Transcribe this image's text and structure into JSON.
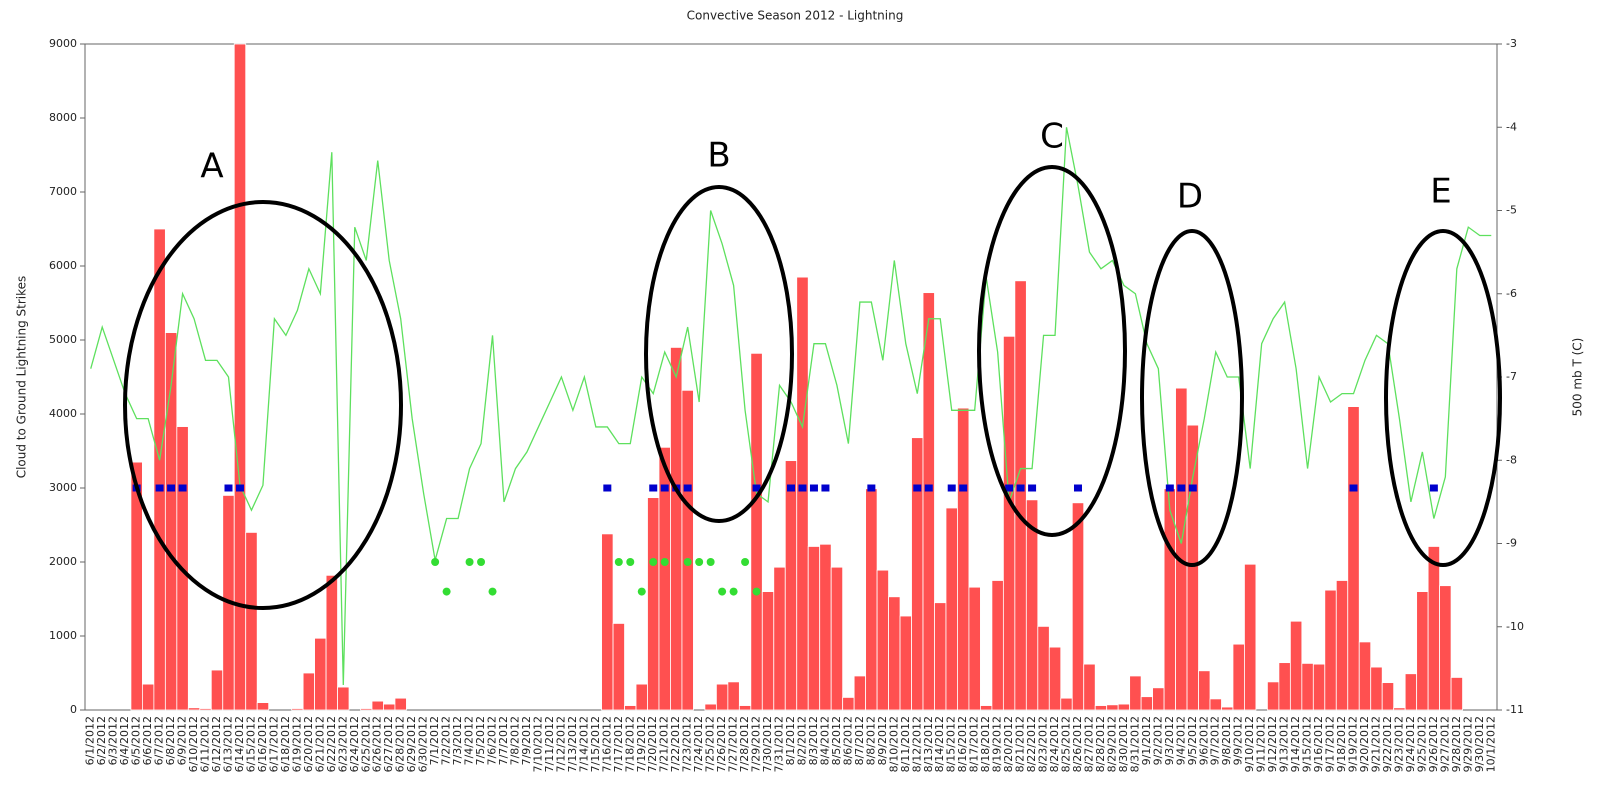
{
  "chart_data": {
    "type": "bar",
    "title": "Convective Season 2012 - Lightning",
    "y_label": "Cloud to Ground Lightning Strikes",
    "y2_label": "500 mb T (C)",
    "categories": [
      "6/1/2012",
      "6/2/2012",
      "6/3/2012",
      "6/4/2012",
      "6/5/2012",
      "6/6/2012",
      "6/7/2012",
      "6/8/2012",
      "6/9/2012",
      "6/10/2012",
      "6/11/2012",
      "6/12/2012",
      "6/13/2012",
      "6/14/2012",
      "6/15/2012",
      "6/16/2012",
      "6/17/2012",
      "6/18/2012",
      "6/19/2012",
      "6/20/2012",
      "6/21/2012",
      "6/22/2012",
      "6/23/2012",
      "6/24/2012",
      "6/25/2012",
      "6/26/2012",
      "6/27/2012",
      "6/28/2012",
      "6/29/2012",
      "6/30/2012",
      "7/1/2012",
      "7/2/2012",
      "7/3/2012",
      "7/4/2012",
      "7/5/2012",
      "7/6/2012",
      "7/7/2012",
      "7/8/2012",
      "7/9/2012",
      "7/10/2012",
      "7/11/2012",
      "7/12/2012",
      "7/13/2012",
      "7/14/2012",
      "7/15/2012",
      "7/16/2012",
      "7/17/2012",
      "7/18/2012",
      "7/19/2012",
      "7/20/2012",
      "7/21/2012",
      "7/22/2012",
      "7/23/2012",
      "7/24/2012",
      "7/25/2012",
      "7/26/2012",
      "7/27/2012",
      "7/28/2012",
      "7/29/2012",
      "7/30/2012",
      "7/31/2012",
      "8/1/2012",
      "8/2/2012",
      "8/3/2012",
      "8/4/2012",
      "8/5/2012",
      "8/6/2012",
      "8/7/2012",
      "8/8/2012",
      "8/9/2012",
      "8/10/2012",
      "8/11/2012",
      "8/12/2012",
      "8/13/2012",
      "8/14/2012",
      "8/15/2012",
      "8/16/2012",
      "8/17/2012",
      "8/18/2012",
      "8/19/2012",
      "8/20/2012",
      "8/21/2012",
      "8/22/2012",
      "8/23/2012",
      "8/24/2012",
      "8/25/2012",
      "8/26/2012",
      "8/27/2012",
      "8/28/2012",
      "8/29/2012",
      "8/30/2012",
      "8/31/2012",
      "9/1/2012",
      "9/2/2012",
      "9/3/2012",
      "9/4/2012",
      "9/5/2012",
      "9/6/2012",
      "9/7/2012",
      "9/8/2012",
      "9/9/2012",
      "9/10/2012",
      "9/11/2012",
      "9/12/2012",
      "9/13/2012",
      "9/14/2012",
      "9/15/2012",
      "9/16/2012",
      "9/17/2012",
      "9/18/2012",
      "9/19/2012",
      "9/20/2012",
      "9/21/2012",
      "9/22/2012",
      "9/23/2012",
      "9/24/2012",
      "9/25/2012",
      "9/26/2012",
      "9/27/2012",
      "9/28/2012",
      "9/29/2012",
      "9/30/2012",
      "10/1/2012"
    ],
    "series": [
      {
        "kind": "bar",
        "color": "#ff5050",
        "values": [
          0,
          0,
          0,
          0,
          3350,
          350,
          6500,
          5100,
          3830,
          30,
          20,
          540,
          2900,
          9000,
          2400,
          100,
          0,
          0,
          20,
          500,
          970,
          1820,
          310,
          0,
          20,
          120,
          80,
          160,
          0,
          0,
          0,
          0,
          0,
          0,
          0,
          0,
          0,
          0,
          0,
          0,
          0,
          0,
          0,
          0,
          0,
          2380,
          1170,
          60,
          350,
          2870,
          3550,
          4900,
          4320,
          0,
          80,
          350,
          380,
          60,
          4820,
          1600,
          1930,
          3370,
          5850,
          2210,
          2240,
          1930,
          170,
          460,
          2990,
          1890,
          1530,
          1270,
          3680,
          5640,
          1450,
          2730,
          4080,
          1660,
          60,
          1750,
          5050,
          5800,
          2840,
          1130,
          850,
          160,
          2800,
          620,
          60,
          70,
          80,
          460,
          180,
          300,
          2990,
          4350,
          3850,
          530,
          150,
          40,
          890,
          1970,
          0,
          380,
          640,
          1200,
          630,
          620,
          1620,
          1750,
          4100,
          920,
          580,
          370,
          30,
          490,
          1600,
          2210,
          1680,
          440,
          0,
          0,
          0
        ]
      },
      {
        "kind": "line",
        "axis": "y2",
        "color": "#5ee05e",
        "values": [
          -6.9,
          -6.4,
          -6.8,
          -7.2,
          -7.5,
          -7.5,
          -8.0,
          -7.1,
          -6.0,
          -6.3,
          -6.8,
          -6.8,
          -7.0,
          -8.3,
          -8.6,
          -8.3,
          -6.3,
          -6.5,
          -6.2,
          -5.7,
          -6.0,
          -4.3,
          -10.7,
          -5.2,
          -5.6,
          -4.4,
          -5.6,
          -6.3,
          -7.5,
          -8.4,
          -9.2,
          -8.7,
          -8.7,
          -8.1,
          -7.8,
          -6.5,
          -8.5,
          -8.1,
          -7.9,
          -7.6,
          -7.3,
          -7.0,
          -7.4,
          -7.0,
          -7.6,
          -7.6,
          -7.8,
          -7.8,
          -7.0,
          -7.2,
          -6.7,
          -7.0,
          -6.4,
          -7.3,
          -5.0,
          -5.4,
          -5.9,
          -7.4,
          -8.4,
          -8.5,
          -7.1,
          -7.3,
          -7.6,
          -6.6,
          -6.6,
          -7.1,
          -7.8,
          -6.1,
          -6.1,
          -6.8,
          -5.6,
          -6.6,
          -7.2,
          -6.3,
          -6.3,
          -7.4,
          -7.4,
          -7.4,
          -5.8,
          -6.7,
          -8.5,
          -8.1,
          -8.1,
          -6.5,
          -6.5,
          -4.0,
          -4.7,
          -5.5,
          -5.7,
          -5.6,
          -5.9,
          -6.0,
          -6.6,
          -6.9,
          -8.6,
          -9.0,
          -8.2,
          -7.5,
          -6.7,
          -7.0,
          -7.0,
          -8.1,
          -6.6,
          -6.3,
          -6.1,
          -6.9,
          -8.1,
          -7.0,
          -7.3,
          -7.2,
          -7.2,
          -6.8,
          -6.5,
          -6.6,
          -7.5,
          -8.5,
          -7.9,
          -8.7,
          -8.2,
          -5.7,
          -5.2,
          -5.3,
          -5.3
        ]
      },
      {
        "kind": "marker",
        "shape": "square",
        "color": "#0000cc",
        "values": [
          null,
          null,
          null,
          null,
          3000,
          null,
          3000,
          3000,
          3000,
          null,
          null,
          null,
          3000,
          3000,
          null,
          null,
          null,
          null,
          null,
          null,
          null,
          null,
          null,
          null,
          null,
          null,
          null,
          null,
          null,
          null,
          null,
          null,
          null,
          null,
          null,
          null,
          null,
          null,
          null,
          null,
          null,
          null,
          null,
          null,
          null,
          3000,
          null,
          null,
          null,
          3000,
          3000,
          3000,
          3000,
          null,
          null,
          null,
          null,
          null,
          3000,
          null,
          null,
          3000,
          3000,
          3000,
          3000,
          null,
          null,
          null,
          3000,
          null,
          null,
          null,
          3000,
          3000,
          null,
          3000,
          3000,
          null,
          null,
          null,
          3000,
          3000,
          3000,
          null,
          null,
          null,
          3000,
          null,
          null,
          null,
          null,
          null,
          null,
          null,
          3000,
          3000,
          3000,
          null,
          null,
          null,
          null,
          null,
          null,
          null,
          null,
          null,
          null,
          null,
          null,
          null,
          3000,
          null,
          null,
          null,
          null,
          null,
          null,
          3000,
          null,
          null,
          null,
          null,
          null
        ]
      },
      {
        "kind": "marker",
        "shape": "dot",
        "color": "#33dd33",
        "values": [
          null,
          null,
          null,
          null,
          null,
          null,
          null,
          null,
          null,
          null,
          null,
          null,
          null,
          null,
          null,
          null,
          null,
          null,
          null,
          null,
          null,
          null,
          null,
          null,
          null,
          null,
          null,
          null,
          null,
          null,
          2000,
          null,
          null,
          2000,
          2000,
          null,
          null,
          null,
          null,
          null,
          null,
          null,
          null,
          null,
          null,
          null,
          2000,
          2000,
          null,
          2000,
          2000,
          null,
          2000,
          2000,
          2000,
          null,
          null,
          2000,
          null,
          null,
          null,
          null,
          null,
          null,
          null,
          null,
          null,
          null,
          null,
          null,
          null,
          null,
          null,
          null,
          null,
          null,
          null,
          null,
          null,
          null,
          null,
          null,
          null,
          null,
          null,
          null,
          null,
          null,
          null,
          null,
          null,
          null,
          null,
          null,
          null,
          null,
          null,
          null,
          null,
          null,
          null,
          null,
          null,
          null,
          null,
          null,
          null,
          null,
          null,
          null,
          null,
          null,
          null,
          null,
          null,
          null,
          null,
          null,
          null,
          null,
          null,
          null,
          null
        ]
      },
      {
        "kind": "marker",
        "shape": "dot",
        "color": "#33dd33",
        "values": [
          null,
          null,
          null,
          null,
          null,
          null,
          null,
          null,
          null,
          null,
          null,
          null,
          null,
          null,
          null,
          null,
          null,
          null,
          null,
          null,
          null,
          null,
          null,
          null,
          null,
          null,
          null,
          null,
          null,
          null,
          null,
          1600,
          null,
          null,
          null,
          1600,
          null,
          null,
          null,
          null,
          null,
          null,
          null,
          null,
          null,
          null,
          null,
          null,
          1600,
          null,
          null,
          null,
          null,
          null,
          null,
          1600,
          1600,
          null,
          1600,
          null,
          null,
          null,
          null,
          null,
          null,
          null,
          null,
          null,
          null,
          null,
          null,
          null,
          null,
          null,
          null,
          null,
          null,
          null,
          null,
          null,
          null,
          null,
          null,
          null,
          null,
          null,
          null,
          null,
          null,
          null,
          null,
          null,
          null,
          null,
          null,
          null,
          null,
          null,
          null,
          null,
          null,
          null,
          null,
          null,
          null,
          null,
          null,
          null,
          null,
          null,
          null,
          null,
          null,
          null,
          null,
          null,
          null,
          null,
          null,
          null,
          null,
          null,
          null
        ]
      }
    ],
    "ylim": [
      0,
      9000
    ],
    "yticks": [
      0,
      1000,
      2000,
      3000,
      4000,
      5000,
      6000,
      7000,
      8000,
      9000
    ],
    "y2lim": [
      -11,
      -3
    ],
    "y2ticks": [
      -11,
      -10,
      -9,
      -8,
      -7,
      -6,
      -5,
      -4,
      -3
    ],
    "annotations": [
      {
        "text": "A"
      },
      {
        "text": "B"
      },
      {
        "text": "C"
      },
      {
        "text": "D"
      },
      {
        "text": "E"
      }
    ]
  }
}
